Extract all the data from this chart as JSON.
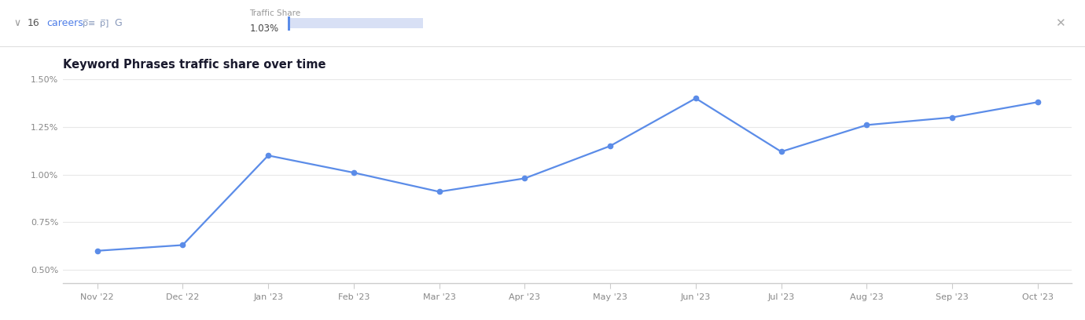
{
  "title": "Keyword Phrases traffic share over time",
  "header_traffic_share_label": "Traffic Share",
  "header_traffic_share_value": "1.03%",
  "x_labels": [
    "Nov '22",
    "Dec '22",
    "Jan '23",
    "Feb '23",
    "Mar '23",
    "Apr '23",
    "May '23",
    "Jun '23",
    "Jul '23",
    "Aug '23",
    "Sep '23",
    "Oct '23"
  ],
  "y_values": [
    0.006,
    0.0063,
    0.011,
    0.0101,
    0.0091,
    0.0098,
    0.0115,
    0.014,
    0.0112,
    0.0126,
    0.013,
    0.0138
  ],
  "y_ticks": [
    0.005,
    0.0075,
    0.01,
    0.0125,
    0.015
  ],
  "y_tick_labels": [
    "0.50%",
    "0.75%",
    "1.00%",
    "1.25%",
    "1.50%"
  ],
  "ylim": [
    0.0043,
    0.0158
  ],
  "line_color": "#5b8ce8",
  "marker_color": "#5b8ce8",
  "bg_color": "#ffffff",
  "grid_color": "#e8e8e8",
  "title_color": "#1a1a2e",
  "tick_label_color": "#888888",
  "axis_line_color": "#cccccc",
  "header_separator_color": "#e0e0e0",
  "bar_fill_color": "#d8e0f5",
  "bar_border_color": "#5b8ce8"
}
